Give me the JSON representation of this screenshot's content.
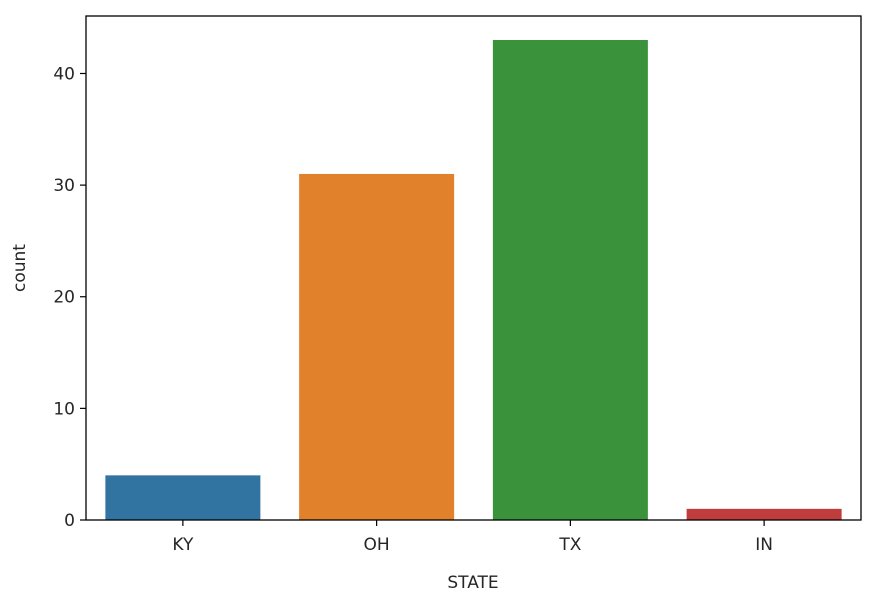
{
  "chart_data": {
    "type": "bar",
    "categories": [
      "KY",
      "OH",
      "TX",
      "IN"
    ],
    "values": [
      4,
      31,
      43,
      1
    ],
    "colors": [
      "#3274a1",
      "#e1812c",
      "#3a923a",
      "#c03d3e"
    ],
    "title": "",
    "xlabel": "STATE",
    "ylabel": "count",
    "ylim": [
      0,
      45.15
    ],
    "yticks": [
      0,
      10,
      20,
      30,
      40
    ],
    "grid": false
  }
}
